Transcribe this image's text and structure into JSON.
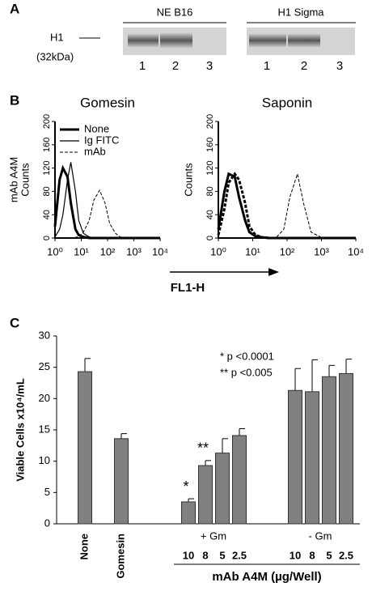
{
  "panel_a": {
    "label": "A",
    "marker": {
      "name": "H1",
      "size": "(32kDa)"
    },
    "groups": [
      {
        "label": "NE B16",
        "lanes": [
          "1",
          "2",
          "3"
        ]
      },
      {
        "label": "H1 Sigma",
        "lanes": [
          "1",
          "2",
          "3"
        ]
      }
    ]
  },
  "chart_data": [
    {
      "type": "line",
      "panel_label": "B",
      "title": "Gomesin",
      "y_label": [
        "mAb A4M",
        "Counts"
      ],
      "legend": "upper left",
      "xscale": "log",
      "xlim": [
        1,
        10000
      ],
      "xticks": [
        {
          "value": 1,
          "label": "10⁰"
        },
        {
          "value": 10,
          "label": "10¹"
        },
        {
          "value": 100,
          "label": "10²"
        },
        {
          "value": 1000,
          "label": "10³"
        },
        {
          "value": 10000,
          "label": "10⁴"
        }
      ],
      "ylim": [
        0,
        200
      ],
      "yticks": [
        0,
        40,
        80,
        120,
        160,
        200
      ],
      "x": [
        1,
        1.5,
        2,
        3,
        4,
        6,
        8,
        12,
        20,
        30,
        50,
        80,
        120,
        200,
        300,
        500,
        1000,
        10000
      ],
      "series": [
        {
          "name": "None",
          "style": "thick",
          "color": "#000000",
          "values": [
            20,
            100,
            120,
            105,
            60,
            15,
            5,
            2,
            0,
            0,
            0,
            0,
            0,
            0,
            0,
            0,
            0,
            0
          ]
        },
        {
          "name": "Ig FITC",
          "style": "thin",
          "color": "#000000",
          "values": [
            2,
            15,
            40,
            100,
            130,
            80,
            30,
            8,
            2,
            0,
            0,
            0,
            0,
            0,
            0,
            0,
            0,
            0
          ]
        },
        {
          "name": "mAb",
          "style": "dashed",
          "color": "#000000",
          "values": [
            0,
            0,
            0,
            0,
            0,
            1,
            3,
            10,
            30,
            65,
            82,
            60,
            25,
            8,
            2,
            0,
            0,
            0
          ]
        }
      ]
    },
    {
      "type": "line",
      "title": "Saponin",
      "y_label": [
        "Counts"
      ],
      "x_label": "FL1-H",
      "xscale": "log",
      "xlim": [
        1,
        10000
      ],
      "xticks": [
        {
          "value": 1,
          "label": "10⁰"
        },
        {
          "value": 10,
          "label": "10¹"
        },
        {
          "value": 100,
          "label": "10²"
        },
        {
          "value": 1000,
          "label": "10³"
        },
        {
          "value": 10000,
          "label": "10⁴"
        }
      ],
      "ylim": [
        0,
        200
      ],
      "yticks": [
        0,
        40,
        80,
        120,
        160,
        200
      ],
      "x": [
        1,
        1.5,
        2,
        3,
        4,
        6,
        8,
        12,
        20,
        30,
        50,
        80,
        120,
        200,
        300,
        500,
        1000,
        10000
      ],
      "series": [
        {
          "style": "thick",
          "color": "#000000",
          "values": [
            15,
            80,
            110,
            105,
            70,
            30,
            10,
            3,
            1,
            0,
            0,
            0,
            0,
            0,
            0,
            0,
            0,
            0
          ]
        },
        {
          "style": "thick-dashed",
          "color": "#000000",
          "values": [
            5,
            50,
            95,
            110,
            100,
            60,
            20,
            5,
            1,
            0,
            0,
            0,
            0,
            0,
            0,
            0,
            0,
            0
          ]
        },
        {
          "style": "dashed",
          "color": "#000000",
          "values": [
            0,
            0,
            0,
            0,
            0,
            0,
            0,
            0,
            0,
            0,
            2,
            15,
            70,
            110,
            60,
            10,
            1,
            0
          ]
        }
      ]
    },
    {
      "type": "bar",
      "panel_label": "C",
      "y_label": "Viable Cells x10⁴/mL",
      "x_label": "mAb A4M (µg/Well)",
      "annotations": [
        "* p <0.0001",
        "** p <0.005"
      ],
      "groups": [
        "+ Gm",
        "- Gm"
      ],
      "categories": [
        "None",
        "Gomesin",
        "10",
        "8",
        "5",
        "2.5",
        "10",
        "8",
        "5",
        "2.5"
      ],
      "values": [
        24.3,
        13.6,
        3.5,
        9.3,
        11.3,
        14.1,
        21.3,
        21.1,
        23.5,
        24.0
      ],
      "errors": [
        2.1,
        0.8,
        0.5,
        0.8,
        2.3,
        1.1,
        3.5,
        5.1,
        1.8,
        2.3
      ],
      "significance": [
        null,
        null,
        "*",
        "**",
        null,
        null,
        null,
        null,
        null,
        null
      ],
      "color": "#808080",
      "ylim": [
        0,
        30
      ],
      "yticks": [
        0,
        5,
        10,
        15,
        20,
        25,
        30
      ]
    }
  ]
}
